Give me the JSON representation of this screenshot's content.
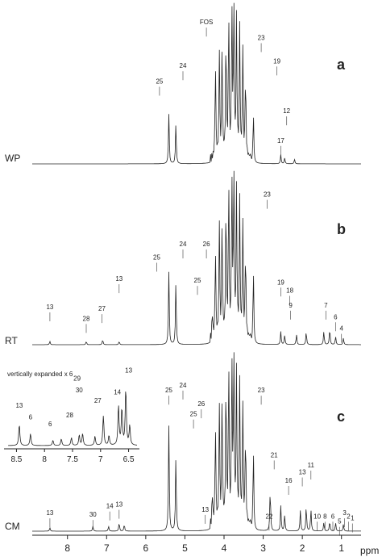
{
  "chart_data": [
    {
      "type": "line",
      "panel_letter": "a",
      "sample_label": "WP",
      "x_axis": {
        "label": "ppm",
        "reversed": true,
        "xlim": [
          8.9,
          0.5
        ]
      },
      "peaks": [
        {
          "ppm": 5.41,
          "h": 0.32
        },
        {
          "ppm": 5.23,
          "h": 0.26
        },
        {
          "ppm": 4.22,
          "h": 0.62
        },
        {
          "ppm": 4.12,
          "h": 0.7
        },
        {
          "ppm": 4.05,
          "h": 0.72
        },
        {
          "ppm": 3.95,
          "h": 0.8
        },
        {
          "ppm": 3.88,
          "h": 0.92
        },
        {
          "ppm": 3.8,
          "h": 1.0
        },
        {
          "ppm": 3.75,
          "h": 0.95
        },
        {
          "ppm": 3.68,
          "h": 0.9
        },
        {
          "ppm": 3.6,
          "h": 0.85
        },
        {
          "ppm": 3.52,
          "h": 0.7
        },
        {
          "ppm": 3.45,
          "h": 0.55
        },
        {
          "ppm": 3.25,
          "h": 0.32
        },
        {
          "ppm": 2.55,
          "h": 0.06
        },
        {
          "ppm": 2.45,
          "h": 0.04
        },
        {
          "ppm": 2.2,
          "h": 0.03
        }
      ],
      "annotations": [
        {
          "text": "FOS",
          "ppm": 4.45,
          "y": 0.88
        },
        {
          "text": "25",
          "ppm": 5.65,
          "y": 0.5
        },
        {
          "text": "24",
          "ppm": 5.05,
          "y": 0.6
        },
        {
          "text": "23",
          "ppm": 3.05,
          "y": 0.78
        },
        {
          "text": "19",
          "ppm": 2.65,
          "y": 0.63
        },
        {
          "text": "12",
          "ppm": 2.4,
          "y": 0.31
        },
        {
          "text": "17",
          "ppm": 2.55,
          "y": 0.12
        }
      ]
    },
    {
      "type": "line",
      "panel_letter": "b",
      "sample_label": "RT",
      "x_axis": {
        "label": "ppm",
        "reversed": true,
        "xlim": [
          8.9,
          0.5
        ]
      },
      "peaks": [
        {
          "ppm": 8.45,
          "h": 0.02
        },
        {
          "ppm": 7.52,
          "h": 0.02
        },
        {
          "ppm": 7.1,
          "h": 0.03
        },
        {
          "ppm": 6.68,
          "h": 0.02
        },
        {
          "ppm": 5.41,
          "h": 0.44
        },
        {
          "ppm": 5.23,
          "h": 0.38
        },
        {
          "ppm": 4.3,
          "h": 0.15
        },
        {
          "ppm": 4.22,
          "h": 0.55
        },
        {
          "ppm": 4.12,
          "h": 0.72
        },
        {
          "ppm": 4.05,
          "h": 0.7
        },
        {
          "ppm": 3.95,
          "h": 0.85
        },
        {
          "ppm": 3.88,
          "h": 0.95
        },
        {
          "ppm": 3.8,
          "h": 1.0
        },
        {
          "ppm": 3.75,
          "h": 0.98
        },
        {
          "ppm": 3.68,
          "h": 0.9
        },
        {
          "ppm": 3.6,
          "h": 0.85
        },
        {
          "ppm": 3.52,
          "h": 0.7
        },
        {
          "ppm": 3.45,
          "h": 0.55
        },
        {
          "ppm": 3.25,
          "h": 0.45
        },
        {
          "ppm": 2.55,
          "h": 0.08
        },
        {
          "ppm": 2.45,
          "h": 0.06
        },
        {
          "ppm": 2.15,
          "h": 0.06
        },
        {
          "ppm": 1.9,
          "h": 0.08
        },
        {
          "ppm": 1.45,
          "h": 0.08
        },
        {
          "ppm": 1.3,
          "h": 0.1
        },
        {
          "ppm": 1.15,
          "h": 0.05
        },
        {
          "ppm": 0.95,
          "h": 0.04
        }
      ],
      "annotations": [
        {
          "text": "13",
          "ppm": 8.45,
          "y": 0.2
        },
        {
          "text": "28",
          "ppm": 7.52,
          "y": 0.13
        },
        {
          "text": "27",
          "ppm": 7.12,
          "y": 0.19
        },
        {
          "text": "13",
          "ppm": 6.68,
          "y": 0.37
        },
        {
          "text": "25",
          "ppm": 5.72,
          "y": 0.5
        },
        {
          "text": "24",
          "ppm": 5.05,
          "y": 0.58
        },
        {
          "text": "25",
          "ppm": 4.68,
          "y": 0.36
        },
        {
          "text": "26",
          "ppm": 4.45,
          "y": 0.58
        },
        {
          "text": "23",
          "ppm": 2.9,
          "y": 0.88
        },
        {
          "text": "19",
          "ppm": 2.55,
          "y": 0.35
        },
        {
          "text": "18",
          "ppm": 2.32,
          "y": 0.3
        },
        {
          "text": "9",
          "ppm": 2.3,
          "y": 0.21
        },
        {
          "text": "7",
          "ppm": 1.4,
          "y": 0.21
        },
        {
          "text": "6",
          "ppm": 1.15,
          "y": 0.14
        },
        {
          "text": "4",
          "ppm": 1.0,
          "y": 0.07
        }
      ]
    },
    {
      "type": "line",
      "panel_letter": "c",
      "sample_label": "CM",
      "x_axis": {
        "label": "ppm",
        "reversed": true,
        "ticks": [
          8,
          7,
          6,
          5,
          4,
          3,
          2,
          1
        ],
        "xlim": [
          8.9,
          0.5
        ]
      },
      "peaks": [
        {
          "ppm": 8.45,
          "h": 0.02
        },
        {
          "ppm": 7.35,
          "h": 0.03
        },
        {
          "ppm": 6.95,
          "h": 0.03
        },
        {
          "ppm": 6.68,
          "h": 0.05
        },
        {
          "ppm": 6.55,
          "h": 0.04
        },
        {
          "ppm": 5.41,
          "h": 0.62
        },
        {
          "ppm": 5.23,
          "h": 0.44
        },
        {
          "ppm": 4.3,
          "h": 0.18
        },
        {
          "ppm": 4.22,
          "h": 0.6
        },
        {
          "ppm": 4.12,
          "h": 0.72
        },
        {
          "ppm": 4.05,
          "h": 0.75
        },
        {
          "ppm": 3.95,
          "h": 0.88
        },
        {
          "ppm": 3.88,
          "h": 0.95
        },
        {
          "ppm": 3.8,
          "h": 1.0
        },
        {
          "ppm": 3.75,
          "h": 0.97
        },
        {
          "ppm": 3.68,
          "h": 0.9
        },
        {
          "ppm": 3.6,
          "h": 0.85
        },
        {
          "ppm": 3.52,
          "h": 0.7
        },
        {
          "ppm": 3.45,
          "h": 0.55
        },
        {
          "ppm": 3.25,
          "h": 0.48
        },
        {
          "ppm": 2.82,
          "h": 0.25
        },
        {
          "ppm": 2.55,
          "h": 0.15
        },
        {
          "ppm": 2.45,
          "h": 0.1
        },
        {
          "ppm": 2.05,
          "h": 0.12
        },
        {
          "ppm": 1.9,
          "h": 0.15
        },
        {
          "ppm": 1.78,
          "h": 0.13
        },
        {
          "ppm": 1.45,
          "h": 0.05
        },
        {
          "ppm": 1.3,
          "h": 0.06
        },
        {
          "ppm": 1.15,
          "h": 0.05
        },
        {
          "ppm": 0.95,
          "h": 0.04
        }
      ],
      "annotations": [
        {
          "text": "13",
          "ppm": 8.45,
          "y": 0.08
        },
        {
          "text": "30",
          "ppm": 7.35,
          "y": 0.07
        },
        {
          "text": "14",
          "ppm": 6.92,
          "y": 0.12
        },
        {
          "text": "13",
          "ppm": 6.68,
          "y": 0.13
        },
        {
          "text": "25",
          "ppm": 5.41,
          "y": 0.8
        },
        {
          "text": "24",
          "ppm": 5.05,
          "y": 0.83
        },
        {
          "text": "25",
          "ppm": 4.78,
          "y": 0.66
        },
        {
          "text": "26",
          "ppm": 4.58,
          "y": 0.72
        },
        {
          "text": "13",
          "ppm": 4.48,
          "y": 0.1
        },
        {
          "text": "23",
          "ppm": 3.05,
          "y": 0.8
        },
        {
          "text": "21",
          "ppm": 2.72,
          "y": 0.42
        },
        {
          "text": "22",
          "ppm": 2.85,
          "y": 0.06
        },
        {
          "text": "16",
          "ppm": 2.35,
          "y": 0.27
        },
        {
          "text": "13",
          "ppm": 2.0,
          "y": 0.32
        },
        {
          "text": "11",
          "ppm": 1.78,
          "y": 0.36
        },
        {
          "text": "10",
          "ppm": 1.62,
          "y": 0.06
        },
        {
          "text": "8",
          "ppm": 1.42,
          "y": 0.06
        },
        {
          "text": "6",
          "ppm": 1.22,
          "y": 0.06
        },
        {
          "text": "5",
          "ppm": 1.05,
          "y": 0.03
        },
        {
          "text": "3",
          "ppm": 0.92,
          "y": 0.08
        },
        {
          "text": "2",
          "ppm": 0.82,
          "y": 0.06
        },
        {
          "text": "1",
          "ppm": 0.72,
          "y": 0.05
        }
      ]
    }
  ],
  "inset": {
    "title": "vertically expanded x 6",
    "x_axis": {
      "reversed": true,
      "ticks": [
        8.5,
        8,
        7.5,
        7,
        6.5
      ],
      "xlim": [
        8.65,
        6.35
      ]
    },
    "peaks": [
      {
        "ppm": 8.45,
        "h": 0.32
      },
      {
        "ppm": 8.25,
        "h": 0.18
      },
      {
        "ppm": 7.85,
        "h": 0.08
      },
      {
        "ppm": 7.7,
        "h": 0.1
      },
      {
        "ppm": 7.52,
        "h": 0.12
      },
      {
        "ppm": 7.38,
        "h": 0.16
      },
      {
        "ppm": 7.32,
        "h": 0.18
      },
      {
        "ppm": 7.1,
        "h": 0.14
      },
      {
        "ppm": 6.95,
        "h": 0.45
      },
      {
        "ppm": 6.85,
        "h": 0.15
      },
      {
        "ppm": 6.68,
        "h": 0.6
      },
      {
        "ppm": 6.62,
        "h": 0.55
      },
      {
        "ppm": 6.55,
        "h": 0.85
      },
      {
        "ppm": 6.48,
        "h": 0.3
      }
    ],
    "annotations": [
      {
        "text": "13",
        "ppm": 8.45,
        "y": 0.55
      },
      {
        "text": "6",
        "ppm": 8.25,
        "y": 0.37
      },
      {
        "text": "29",
        "ppm": 7.42,
        "y": 0.96
      },
      {
        "text": "30",
        "ppm": 7.38,
        "y": 0.78
      },
      {
        "text": "28",
        "ppm": 7.55,
        "y": 0.4
      },
      {
        "text": "27",
        "ppm": 7.05,
        "y": 0.62
      },
      {
        "text": "6",
        "ppm": 7.9,
        "y": 0.27
      },
      {
        "text": "14",
        "ppm": 6.7,
        "y": 0.75
      },
      {
        "text": "13",
        "ppm": 6.5,
        "y": 1.08
      }
    ]
  }
}
